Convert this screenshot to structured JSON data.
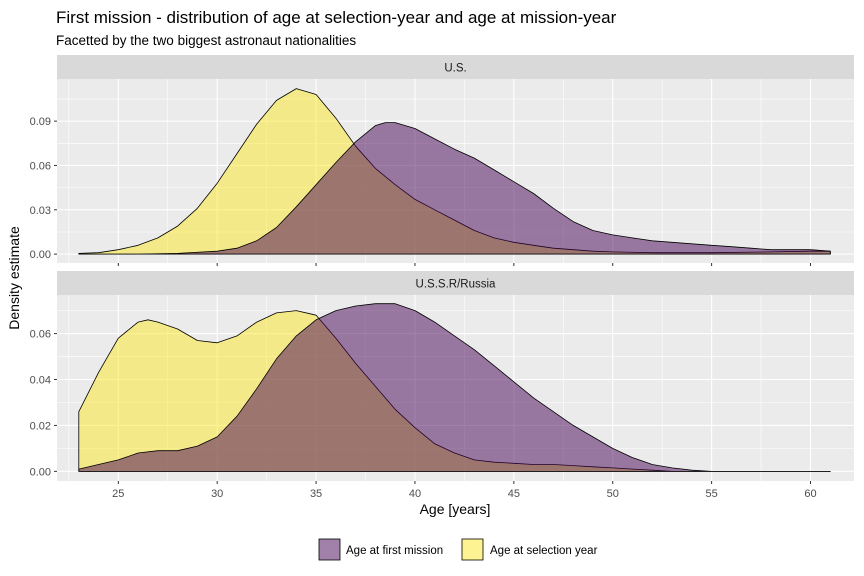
{
  "title": "First mission - distribution of age at selection-year and age at mission-year",
  "subtitle": "Facetted by the two biggest astronaut nationalities",
  "colors": {
    "mission": "#440154",
    "selection": "#FDE725",
    "panel_bg": "#EBEBEB",
    "strip_bg": "#D9D9D9",
    "grid": "#FFFFFF"
  },
  "chart_data": {
    "type": "area",
    "xlabel": "Age [years]",
    "ylabel": "Density estimate",
    "x_ticks": [
      25,
      30,
      35,
      40,
      45,
      50,
      55,
      60
    ],
    "xlim": [
      21.9,
      62.2
    ],
    "legend_position": "bottom",
    "legend": [
      {
        "key": "mission",
        "label": "Age at first mission"
      },
      {
        "key": "selection",
        "label": "Age at selection year"
      }
    ],
    "facets": [
      {
        "label": "U.S.",
        "ylim": [
          -0.006,
          0.1185
        ],
        "y_ticks": [
          0.0,
          0.03,
          0.06,
          0.09
        ],
        "y_tick_labels": [
          "0.00",
          "0.03",
          "0.06",
          "0.09"
        ],
        "series": [
          {
            "key": "selection",
            "points": [
              [
                23,
                0.0005
              ],
              [
                24,
                0.001
              ],
              [
                25,
                0.003
              ],
              [
                26,
                0.006
              ],
              [
                27,
                0.011
              ],
              [
                28,
                0.019
              ],
              [
                29,
                0.031
              ],
              [
                30,
                0.048
              ],
              [
                31,
                0.068
              ],
              [
                32,
                0.088
              ],
              [
                33,
                0.104
              ],
              [
                34,
                0.112
              ],
              [
                35,
                0.108
              ],
              [
                36,
                0.092
              ],
              [
                37,
                0.073
              ],
              [
                38,
                0.058
              ],
              [
                39,
                0.047
              ],
              [
                40,
                0.037
              ],
              [
                41,
                0.03
              ],
              [
                42,
                0.023
              ],
              [
                43,
                0.016
              ],
              [
                44,
                0.011
              ],
              [
                45,
                0.008
              ],
              [
                46,
                0.006
              ],
              [
                47,
                0.004
              ],
              [
                48,
                0.003
              ],
              [
                49,
                0.002
              ],
              [
                50,
                0.0015
              ],
              [
                52,
                0.001
              ],
              [
                55,
                0.001
              ],
              [
                58,
                0.0015
              ],
              [
                60,
                0.002
              ],
              [
                61,
                0.002
              ]
            ]
          },
          {
            "key": "mission",
            "points": [
              [
                23,
                0
              ],
              [
                26,
                0
              ],
              [
                28,
                0.0005
              ],
              [
                30,
                0.002
              ],
              [
                31,
                0.004
              ],
              [
                32,
                0.009
              ],
              [
                33,
                0.018
              ],
              [
                34,
                0.032
              ],
              [
                35,
                0.047
              ],
              [
                36,
                0.062
              ],
              [
                37,
                0.076
              ],
              [
                38,
                0.087
              ],
              [
                38.5,
                0.089
              ],
              [
                39,
                0.089
              ],
              [
                40,
                0.085
              ],
              [
                41,
                0.078
              ],
              [
                42,
                0.071
              ],
              [
                43,
                0.065
              ],
              [
                44,
                0.057
              ],
              [
                45,
                0.049
              ],
              [
                46,
                0.041
              ],
              [
                47,
                0.031
              ],
              [
                48,
                0.022
              ],
              [
                49,
                0.016
              ],
              [
                50,
                0.013
              ],
              [
                51,
                0.011
              ],
              [
                52,
                0.009
              ],
              [
                53,
                0.008
              ],
              [
                54,
                0.007
              ],
              [
                55,
                0.006
              ],
              [
                56,
                0.005
              ],
              [
                57,
                0.004
              ],
              [
                58,
                0.003
              ],
              [
                59,
                0.003
              ],
              [
                60,
                0.003
              ],
              [
                61,
                0.002
              ]
            ]
          }
        ]
      },
      {
        "label": "U.S.S.R/Russia",
        "ylim": [
          -0.0042,
          0.0768
        ],
        "y_ticks": [
          0.0,
          0.02,
          0.04,
          0.06
        ],
        "y_tick_labels": [
          "0.00",
          "0.02",
          "0.04",
          "0.06"
        ],
        "series": [
          {
            "key": "selection",
            "points": [
              [
                23,
                0.026
              ],
              [
                24,
                0.043
              ],
              [
                25,
                0.058
              ],
              [
                26,
                0.065
              ],
              [
                26.5,
                0.066
              ],
              [
                27,
                0.065
              ],
              [
                28,
                0.062
              ],
              [
                29,
                0.057
              ],
              [
                30,
                0.056
              ],
              [
                31,
                0.059
              ],
              [
                32,
                0.065
              ],
              [
                33,
                0.069
              ],
              [
                34,
                0.07
              ],
              [
                35,
                0.068
              ],
              [
                36,
                0.058
              ],
              [
                37,
                0.047
              ],
              [
                38,
                0.037
              ],
              [
                39,
                0.027
              ],
              [
                40,
                0.019
              ],
              [
                41,
                0.012
              ],
              [
                42,
                0.008
              ],
              [
                43,
                0.005
              ],
              [
                44,
                0.004
              ],
              [
                45,
                0.0035
              ],
              [
                46,
                0.003
              ],
              [
                47,
                0.003
              ],
              [
                48,
                0.0025
              ],
              [
                49,
                0.002
              ],
              [
                50,
                0.0015
              ],
              [
                51,
                0.001
              ],
              [
                52,
                0.0005
              ],
              [
                53,
                0
              ],
              [
                61,
                0
              ]
            ]
          },
          {
            "key": "mission",
            "points": [
              [
                23,
                0.001
              ],
              [
                24,
                0.003
              ],
              [
                25,
                0.005
              ],
              [
                26,
                0.008
              ],
              [
                27,
                0.009
              ],
              [
                28,
                0.009
              ],
              [
                29,
                0.011
              ],
              [
                30,
                0.015
              ],
              [
                31,
                0.024
              ],
              [
                32,
                0.036
              ],
              [
                33,
                0.049
              ],
              [
                34,
                0.059
              ],
              [
                35,
                0.066
              ],
              [
                36,
                0.07
              ],
              [
                37,
                0.072
              ],
              [
                38,
                0.073
              ],
              [
                39,
                0.073
              ],
              [
                40,
                0.07
              ],
              [
                41,
                0.065
              ],
              [
                42,
                0.059
              ],
              [
                43,
                0.053
              ],
              [
                44,
                0.046
              ],
              [
                45,
                0.039
              ],
              [
                46,
                0.032
              ],
              [
                47,
                0.026
              ],
              [
                48,
                0.02
              ],
              [
                49,
                0.015
              ],
              [
                50,
                0.01
              ],
              [
                51,
                0.006
              ],
              [
                52,
                0.003
              ],
              [
                53,
                0.0015
              ],
              [
                54,
                0.0005
              ],
              [
                55,
                0
              ],
              [
                61,
                0
              ]
            ]
          }
        ]
      }
    ]
  }
}
